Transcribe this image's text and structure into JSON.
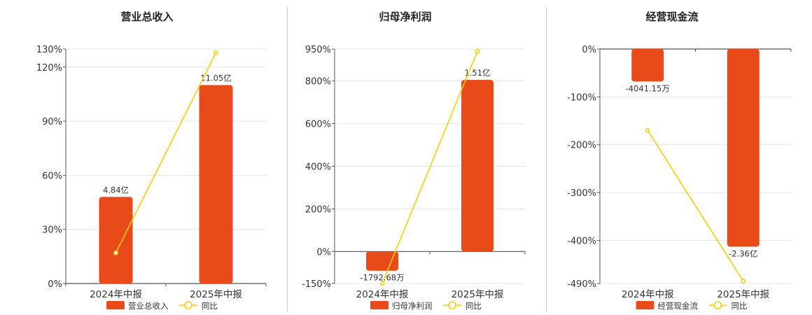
{
  "colors": {
    "bar": "#E84A1A",
    "line": "#F5D000",
    "axis": "#555555",
    "grid": "#e6e6e6",
    "text": "#333333"
  },
  "legend_line_label": "同比",
  "chart_data": [
    {
      "type": "bar",
      "title": "营业总收入",
      "categories": [
        "2024年中报",
        "2025年中报"
      ],
      "series": [
        {
          "name": "营业总收入",
          "kind": "bar",
          "values": [
            4.84,
            11.05
          ],
          "labels": [
            "4.84亿",
            "11.05亿"
          ]
        },
        {
          "name": "同比",
          "kind": "line",
          "values": [
            17,
            128
          ]
        }
      ],
      "yticks": [
        0,
        30,
        60,
        90,
        120,
        130
      ],
      "ytick_labels": [
        "0%",
        "30%",
        "60%",
        "90%",
        "120%",
        "130%"
      ],
      "ylim": [
        0,
        130
      ],
      "bar_percent": [
        48,
        110
      ],
      "xlabel": "",
      "ylabel": "",
      "legend": "bottom"
    },
    {
      "type": "bar",
      "title": "归母净利润",
      "categories": [
        "2024年中报",
        "2025年中报"
      ],
      "series": [
        {
          "name": "归母净利润",
          "kind": "bar",
          "values": [
            -0.179268,
            1.51
          ],
          "labels": [
            "-1792.68万",
            "1.51亿"
          ]
        },
        {
          "name": "同比",
          "kind": "line",
          "values": [
            -150,
            940
          ]
        }
      ],
      "yticks": [
        -150,
        0,
        200,
        400,
        600,
        800,
        950
      ],
      "ytick_labels": [
        "-150%",
        "0%",
        "200%",
        "400%",
        "600%",
        "800%",
        "950%"
      ],
      "ylim": [
        -150,
        950
      ],
      "bar_percent": [
        -90,
        805
      ],
      "xlabel": "",
      "ylabel": "",
      "legend": "bottom"
    },
    {
      "type": "bar",
      "title": "经营现金流",
      "categories": [
        "2024年中报",
        "2025年中报"
      ],
      "series": [
        {
          "name": "经营现金流",
          "kind": "bar",
          "values": [
            -0.404115,
            -2.36
          ],
          "labels": [
            "-4041.15万",
            "-2.36亿"
          ]
        },
        {
          "name": "同比",
          "kind": "line",
          "values": [
            -170,
            -485
          ]
        }
      ],
      "yticks": [
        -490,
        -400,
        -300,
        -200,
        -100,
        0
      ],
      "ytick_labels": [
        "-490%",
        "-400%",
        "-300%",
        "-200%",
        "-100%",
        "0%"
      ],
      "ylim": [
        -490,
        0
      ],
      "bar_percent": [
        -68,
        -413
      ],
      "xlabel": "",
      "ylabel": "",
      "legend": "bottom"
    }
  ]
}
